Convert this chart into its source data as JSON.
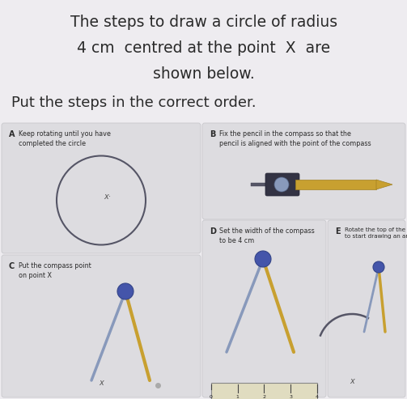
{
  "background_color": "#eeecf0",
  "title_line1": "The steps to draw a circle of radius",
  "title_line2_part1": "4 cm",
  "title_line2_part2": " centred at the point ",
  "title_line2_part3": "X",
  "title_line2_part4": " are",
  "title_line3": "shown below.",
  "subtitle": "Put the steps in the correct order.",
  "title_fontsize": 13.5,
  "subtitle_fontsize": 13,
  "card_bg": "#dddce0",
  "card_border": "#c8c8cc",
  "text_color": "#2a2a2a",
  "small_text_color": "#2a2a2a",
  "compass_color": "#8899bb",
  "pencil_color": "#c8a030"
}
